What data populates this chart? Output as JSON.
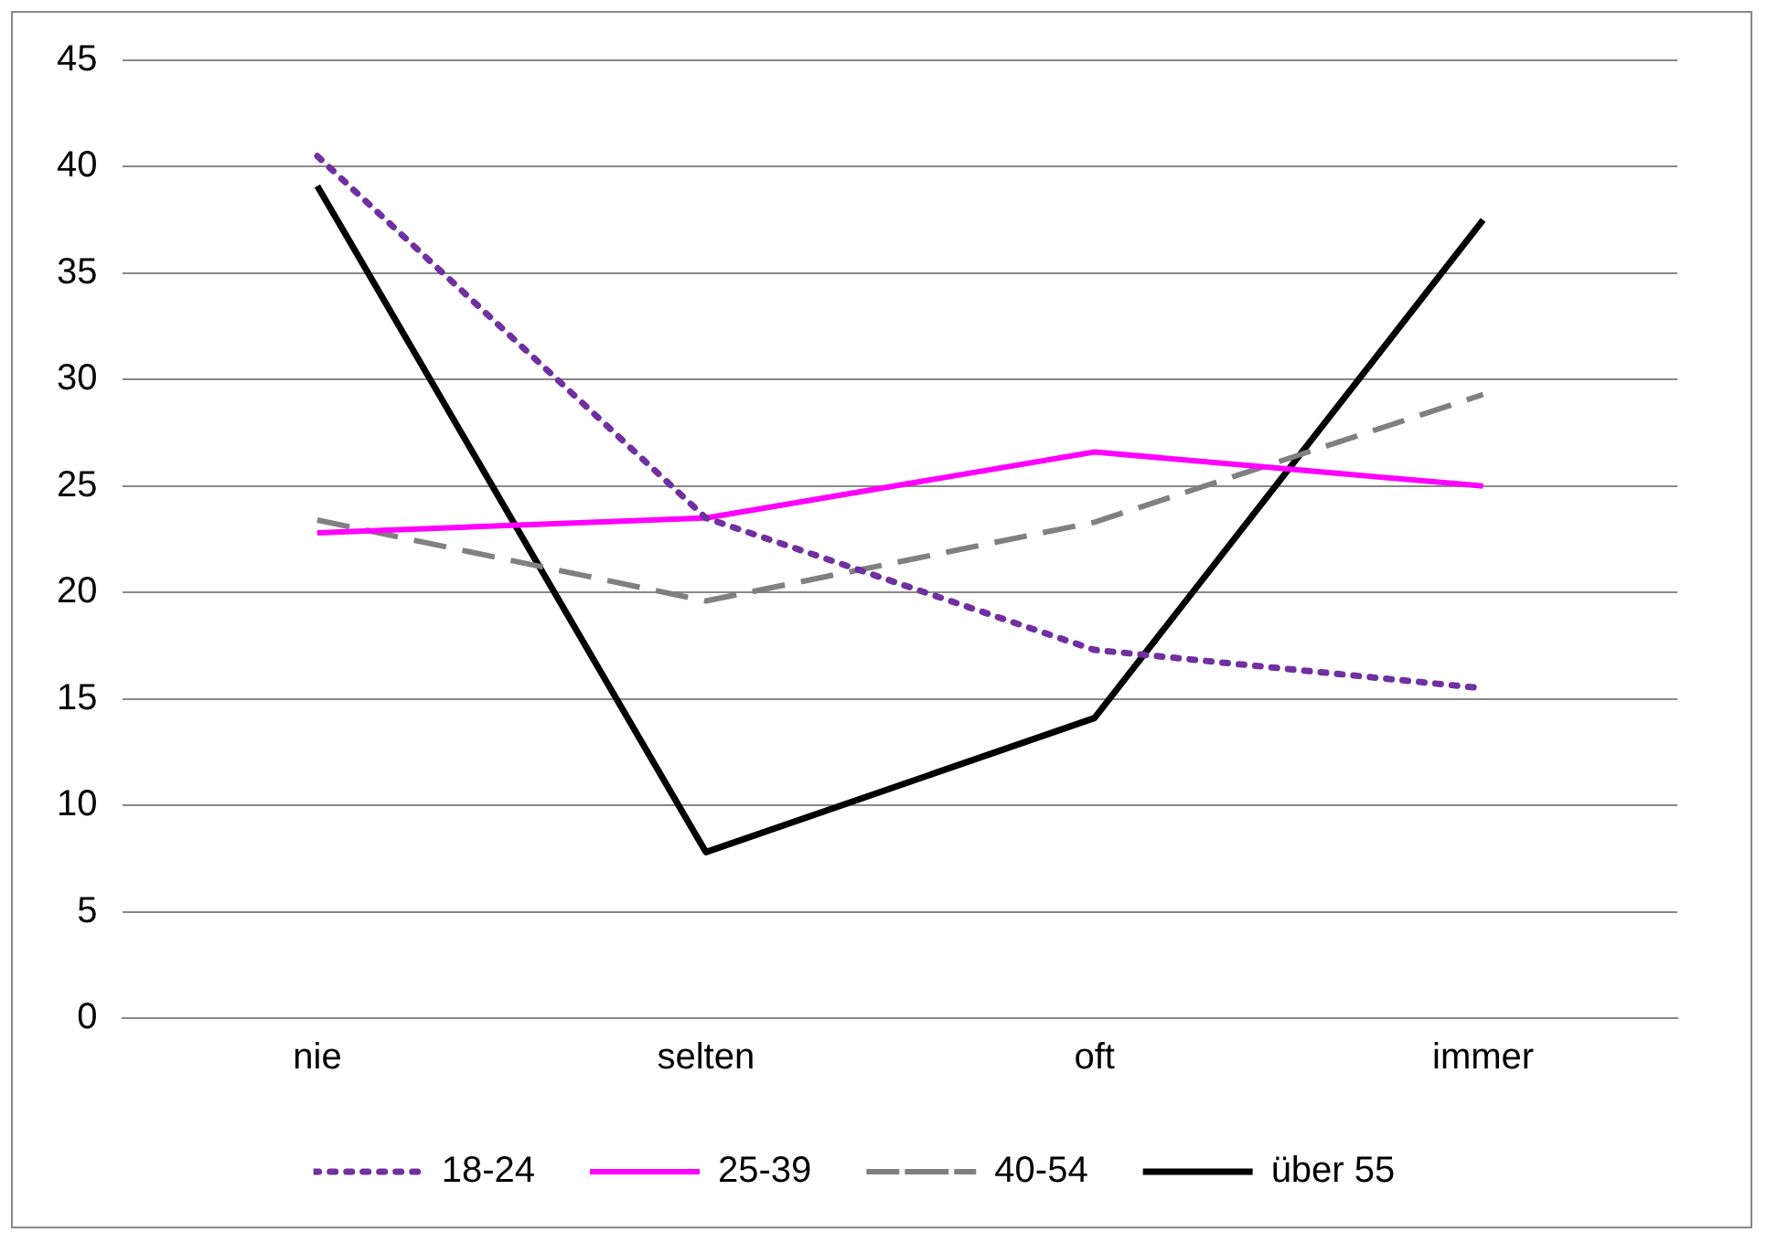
{
  "chart_data": {
    "type": "line",
    "categories": [
      "nie",
      "selten",
      "oft",
      "immer"
    ],
    "series": [
      {
        "name": "18-24",
        "color": "#7030a0",
        "line_style": "dotted",
        "values": [
          40.5,
          23.5,
          17.3,
          15.5
        ]
      },
      {
        "name": "25-39",
        "color": "#ff00ff",
        "line_style": "solid",
        "values": [
          22.8,
          23.5,
          26.6,
          25.0
        ]
      },
      {
        "name": "40-54",
        "color": "#808080",
        "line_style": "dashed",
        "values": [
          23.4,
          19.6,
          23.3,
          29.3
        ]
      },
      {
        "name": "über 55",
        "color": "#000000",
        "line_style": "solid",
        "values": [
          39.1,
          7.8,
          14.1,
          37.5
        ]
      }
    ],
    "ylim": [
      0,
      45
    ],
    "yticks": [
      0,
      5,
      10,
      15,
      20,
      25,
      30,
      35,
      40,
      45
    ],
    "grid": "y",
    "legend": "bottom",
    "marker": "none"
  }
}
